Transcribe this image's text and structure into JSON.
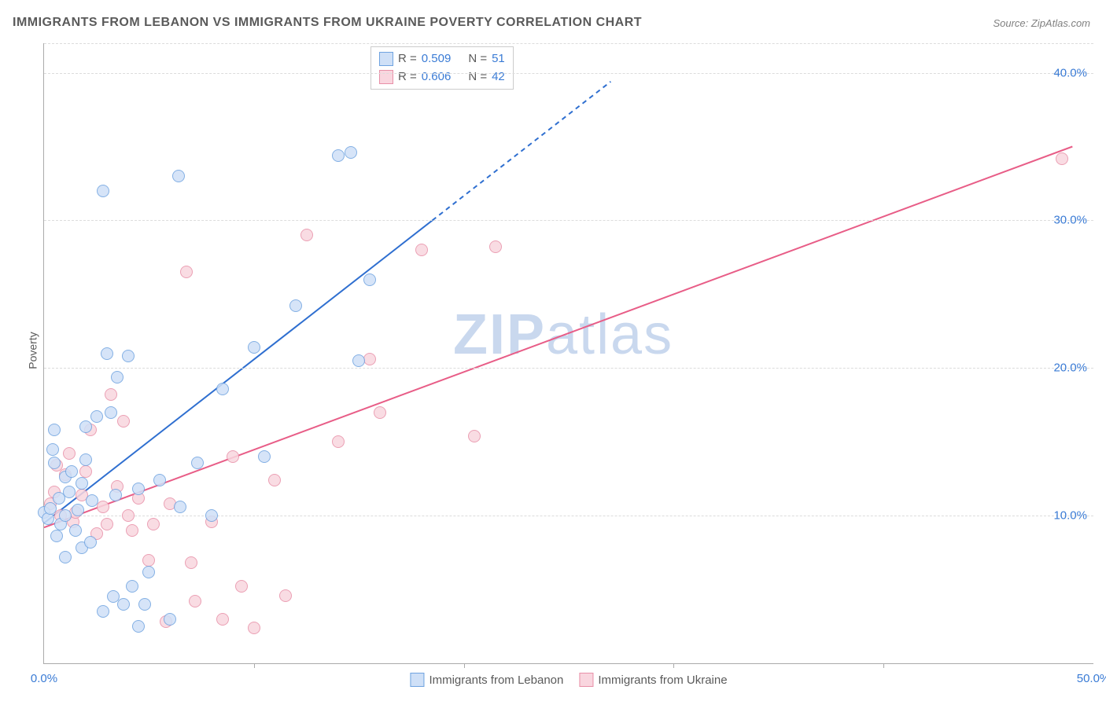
{
  "title": "IMMIGRANTS FROM LEBANON VS IMMIGRANTS FROM UKRAINE POVERTY CORRELATION CHART",
  "source": "Source: ZipAtlas.com",
  "ylabel": "Poverty",
  "watermark": {
    "zip": "ZIP",
    "atlas": "atlas",
    "color": "#c9d8ee"
  },
  "chart": {
    "type": "scatter",
    "xlim": [
      0,
      50
    ],
    "ylim": [
      0,
      42
    ],
    "xticks": [
      {
        "v": 0,
        "label": "0.0%"
      },
      {
        "v": 50,
        "label": "50.0%"
      }
    ],
    "xminor": [
      10,
      20,
      30,
      40
    ],
    "yticks": [
      {
        "v": 10,
        "label": "10.0%"
      },
      {
        "v": 20,
        "label": "20.0%"
      },
      {
        "v": 30,
        "label": "30.0%"
      },
      {
        "v": 40,
        "label": "40.0%"
      }
    ],
    "tick_color": "#3a7bd5",
    "grid_color": "#dcdcdc",
    "axis_color": "#aaaaaa",
    "background_color": "#ffffff",
    "marker_radius": 8,
    "marker_stroke_width": 1.2,
    "label_fontsize": 15,
    "title_fontsize": 16
  },
  "series": {
    "lebanon": {
      "name": "Immigrants from Lebanon",
      "fill": "#cfe0f7",
      "stroke": "#6fa3e0",
      "line_color": "#2f6fd0",
      "R": "0.509",
      "N": "51",
      "trend": {
        "x1": 0,
        "y1": 9.5,
        "x2": 18.5,
        "y2": 30,
        "dash_to_x": 27,
        "dash_to_y": 39.4
      },
      "points": [
        [
          0.0,
          10.2
        ],
        [
          0.2,
          9.8
        ],
        [
          0.3,
          10.5
        ],
        [
          0.4,
          14.5
        ],
        [
          0.5,
          15.8
        ],
        [
          0.6,
          8.6
        ],
        [
          0.7,
          11.2
        ],
        [
          0.8,
          9.4
        ],
        [
          1.0,
          10.0
        ],
        [
          1.0,
          12.6
        ],
        [
          1.2,
          11.6
        ],
        [
          1.3,
          13.0
        ],
        [
          1.5,
          9.0
        ],
        [
          1.6,
          10.4
        ],
        [
          1.8,
          7.8
        ],
        [
          1.8,
          12.2
        ],
        [
          2.0,
          16.0
        ],
        [
          2.0,
          13.8
        ],
        [
          2.2,
          8.2
        ],
        [
          2.3,
          11.0
        ],
        [
          2.5,
          16.7
        ],
        [
          2.8,
          32.0
        ],
        [
          2.8,
          3.5
        ],
        [
          3.0,
          21.0
        ],
        [
          3.2,
          17.0
        ],
        [
          3.3,
          4.5
        ],
        [
          3.4,
          11.4
        ],
        [
          3.5,
          19.4
        ],
        [
          3.8,
          4.0
        ],
        [
          4.0,
          20.8
        ],
        [
          4.2,
          5.2
        ],
        [
          4.5,
          2.5
        ],
        [
          4.5,
          11.8
        ],
        [
          4.8,
          4.0
        ],
        [
          5.0,
          6.2
        ],
        [
          5.5,
          12.4
        ],
        [
          6.0,
          3.0
        ],
        [
          6.4,
          33.0
        ],
        [
          6.5,
          10.6
        ],
        [
          7.3,
          13.6
        ],
        [
          8.0,
          10.0
        ],
        [
          8.5,
          18.6
        ],
        [
          10.0,
          21.4
        ],
        [
          10.5,
          14.0
        ],
        [
          12.0,
          24.2
        ],
        [
          14.0,
          34.4
        ],
        [
          14.6,
          34.6
        ],
        [
          15.0,
          20.5
        ],
        [
          15.5,
          26.0
        ],
        [
          1.0,
          7.2
        ],
        [
          0.5,
          13.6
        ]
      ]
    },
    "ukraine": {
      "name": "Immigrants from Ukraine",
      "fill": "#f9d6df",
      "stroke": "#e890a8",
      "line_color": "#e85d87",
      "R": "0.606",
      "N": "42",
      "trend": {
        "x1": 0,
        "y1": 9.2,
        "x2": 49,
        "y2": 35
      },
      "points": [
        [
          0.3,
          10.8
        ],
        [
          0.5,
          11.6
        ],
        [
          0.6,
          13.4
        ],
        [
          0.8,
          10.0
        ],
        [
          1.0,
          12.8
        ],
        [
          1.2,
          14.2
        ],
        [
          1.4,
          9.6
        ],
        [
          1.5,
          10.2
        ],
        [
          1.8,
          11.4
        ],
        [
          2.0,
          13.0
        ],
        [
          2.2,
          15.8
        ],
        [
          2.5,
          8.8
        ],
        [
          2.8,
          10.6
        ],
        [
          3.0,
          9.4
        ],
        [
          3.2,
          18.2
        ],
        [
          3.5,
          12.0
        ],
        [
          3.8,
          16.4
        ],
        [
          4.0,
          10.0
        ],
        [
          4.2,
          9.0
        ],
        [
          4.5,
          11.2
        ],
        [
          5.0,
          7.0
        ],
        [
          5.2,
          9.4
        ],
        [
          5.8,
          2.8
        ],
        [
          6.0,
          10.8
        ],
        [
          6.8,
          26.5
        ],
        [
          7.2,
          4.2
        ],
        [
          8.0,
          9.6
        ],
        [
          8.5,
          3.0
        ],
        [
          9.0,
          14.0
        ],
        [
          9.4,
          5.2
        ],
        [
          10.0,
          2.4
        ],
        [
          11.0,
          12.4
        ],
        [
          11.5,
          4.6
        ],
        [
          12.5,
          29.0
        ],
        [
          14.0,
          15.0
        ],
        [
          15.5,
          20.6
        ],
        [
          16.0,
          17.0
        ],
        [
          18.0,
          28.0
        ],
        [
          20.5,
          15.4
        ],
        [
          21.5,
          28.2
        ],
        [
          48.5,
          34.2
        ],
        [
          7.0,
          6.8
        ]
      ]
    }
  },
  "legend_top": {
    "r_label": "R =",
    "n_label": "N =",
    "value_color": "#3a7bd5",
    "text_color": "#5a5a5a"
  }
}
